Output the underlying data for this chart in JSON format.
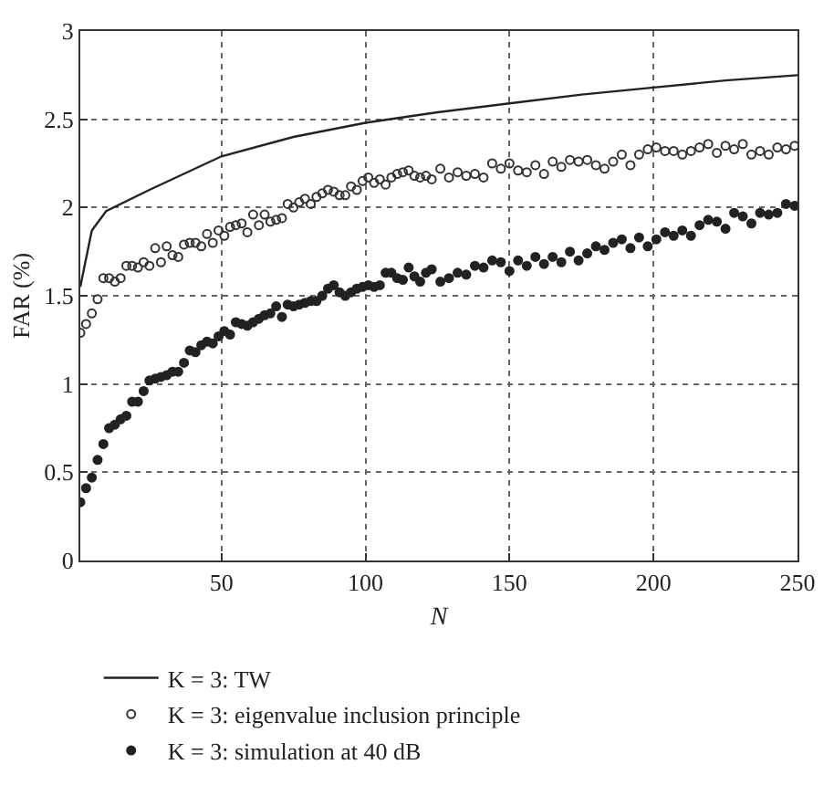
{
  "chart_data": {
    "type": "scatter",
    "xlabel": "N",
    "ylabel": "FAR (%)",
    "xlim": [
      1,
      250
    ],
    "ylim": [
      0,
      3
    ],
    "xticks": [
      50,
      100,
      150,
      200,
      250
    ],
    "yticks": [
      0,
      0.5,
      1,
      1.5,
      2,
      2.5,
      3
    ],
    "grid": true,
    "legend": "bottom",
    "series": [
      {
        "name": "K = 3: TW",
        "type": "line",
        "color": "#222222",
        "marker": "none",
        "line_style": "solid",
        "x": [
          1,
          5,
          10,
          25,
          50,
          75,
          100,
          125,
          150,
          175,
          200,
          225,
          250
        ],
        "values": [
          1.55,
          1.87,
          1.98,
          2.1,
          2.29,
          2.4,
          2.48,
          2.54,
          2.59,
          2.64,
          2.68,
          2.72,
          2.75
        ]
      },
      {
        "name": "K = 3: eigenvalue inclusion principle",
        "color": "#333333",
        "marker": "circle-open",
        "x": [
          1,
          3,
          5,
          7,
          9,
          11,
          13,
          15,
          17,
          19,
          21,
          23,
          25,
          27,
          29,
          31,
          33,
          35,
          37,
          39,
          41,
          43,
          45,
          47,
          49,
          51,
          53,
          55,
          57,
          59,
          61,
          63,
          65,
          67,
          69,
          71,
          73,
          75,
          77,
          79,
          81,
          83,
          85,
          87,
          89,
          91,
          93,
          95,
          97,
          99,
          101,
          103,
          105,
          107,
          109,
          111,
          113,
          115,
          117,
          119,
          121,
          123,
          126,
          129,
          132,
          135,
          138,
          141,
          144,
          147,
          150,
          153,
          156,
          159,
          162,
          165,
          168,
          171,
          174,
          177,
          180,
          183,
          186,
          189,
          192,
          195,
          198,
          201,
          204,
          207,
          210,
          213,
          216,
          219,
          222,
          225,
          228,
          231,
          234,
          237,
          240,
          243,
          246,
          249
        ],
        "values": [
          1.29,
          1.34,
          1.4,
          1.48,
          1.6,
          1.6,
          1.58,
          1.6,
          1.67,
          1.67,
          1.66,
          1.69,
          1.67,
          1.77,
          1.69,
          1.78,
          1.73,
          1.72,
          1.79,
          1.8,
          1.8,
          1.78,
          1.85,
          1.8,
          1.87,
          1.84,
          1.89,
          1.9,
          1.91,
          1.86,
          1.96,
          1.9,
          1.96,
          1.92,
          1.93,
          1.94,
          2.02,
          2.0,
          2.03,
          2.05,
          2.02,
          2.06,
          2.08,
          2.1,
          2.09,
          2.07,
          2.07,
          2.12,
          2.1,
          2.15,
          2.17,
          2.14,
          2.16,
          2.13,
          2.17,
          2.19,
          2.2,
          2.21,
          2.18,
          2.17,
          2.18,
          2.16,
          2.22,
          2.17,
          2.2,
          2.18,
          2.19,
          2.17,
          2.25,
          2.22,
          2.25,
          2.21,
          2.2,
          2.24,
          2.19,
          2.26,
          2.23,
          2.27,
          2.26,
          2.27,
          2.24,
          2.22,
          2.26,
          2.3,
          2.24,
          2.3,
          2.33,
          2.34,
          2.32,
          2.32,
          2.3,
          2.32,
          2.34,
          2.36,
          2.31,
          2.35,
          2.33,
          2.36,
          2.3,
          2.32,
          2.3,
          2.34,
          2.33,
          2.35
        ]
      },
      {
        "name": "K = 3: simulation at 40 dB",
        "color": "#222222",
        "marker": "circle",
        "x": [
          1,
          3,
          5,
          7,
          9,
          11,
          13,
          15,
          17,
          19,
          21,
          23,
          25,
          27,
          29,
          31,
          33,
          35,
          37,
          39,
          41,
          43,
          45,
          47,
          49,
          51,
          53,
          55,
          57,
          59,
          61,
          63,
          65,
          67,
          69,
          71,
          73,
          75,
          77,
          79,
          81,
          83,
          85,
          87,
          89,
          91,
          93,
          95,
          97,
          99,
          101,
          103,
          105,
          107,
          109,
          111,
          113,
          115,
          117,
          119,
          121,
          123,
          126,
          129,
          132,
          135,
          138,
          141,
          144,
          147,
          150,
          153,
          156,
          159,
          162,
          165,
          168,
          171,
          174,
          177,
          180,
          183,
          186,
          189,
          192,
          195,
          198,
          201,
          204,
          207,
          210,
          213,
          216,
          219,
          222,
          225,
          228,
          231,
          234,
          237,
          240,
          243,
          246,
          249
        ],
        "values": [
          0.33,
          0.41,
          0.47,
          0.57,
          0.66,
          0.75,
          0.77,
          0.8,
          0.82,
          0.9,
          0.9,
          0.96,
          1.02,
          1.03,
          1.04,
          1.05,
          1.07,
          1.07,
          1.12,
          1.19,
          1.18,
          1.22,
          1.24,
          1.23,
          1.27,
          1.3,
          1.28,
          1.35,
          1.34,
          1.33,
          1.35,
          1.37,
          1.39,
          1.4,
          1.44,
          1.38,
          1.45,
          1.44,
          1.45,
          1.46,
          1.47,
          1.47,
          1.5,
          1.54,
          1.56,
          1.52,
          1.5,
          1.52,
          1.54,
          1.55,
          1.56,
          1.55,
          1.56,
          1.63,
          1.63,
          1.6,
          1.59,
          1.66,
          1.61,
          1.58,
          1.63,
          1.65,
          1.58,
          1.6,
          1.63,
          1.62,
          1.67,
          1.66,
          1.7,
          1.69,
          1.64,
          1.7,
          1.67,
          1.72,
          1.68,
          1.72,
          1.69,
          1.75,
          1.7,
          1.74,
          1.78,
          1.76,
          1.8,
          1.82,
          1.77,
          1.83,
          1.78,
          1.82,
          1.86,
          1.84,
          1.87,
          1.84,
          1.9,
          1.93,
          1.92,
          1.88,
          1.97,
          1.95,
          1.91,
          1.97,
          1.96,
          1.97,
          2.02,
          2.01
        ]
      }
    ]
  }
}
